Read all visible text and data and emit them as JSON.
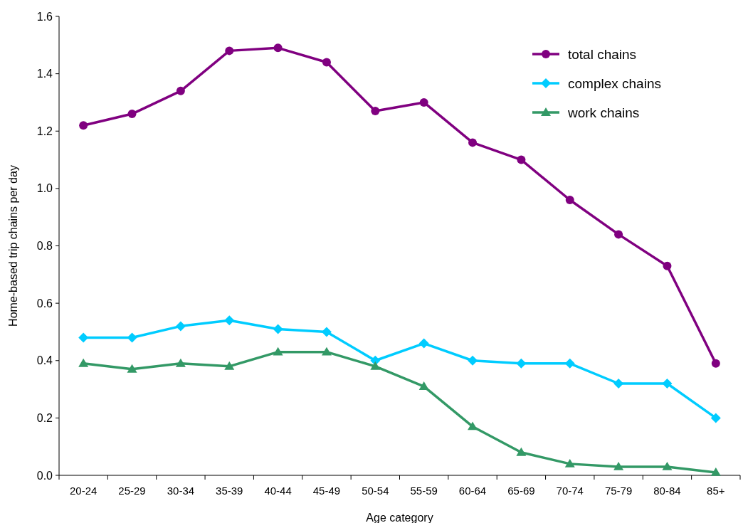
{
  "chart_data": {
    "type": "line",
    "xlabel": "Age category",
    "ylabel": "Home-based trip chains per day",
    "categories": [
      "20-24",
      "25-29",
      "30-34",
      "35-39",
      "40-44",
      "45-49",
      "50-54",
      "55-59",
      "60-64",
      "65-69",
      "70-74",
      "75-79",
      "80-84",
      "85+"
    ],
    "series": [
      {
        "name": "total chains",
        "color": "#800080",
        "marker": "circle",
        "values": [
          1.22,
          1.26,
          1.34,
          1.48,
          1.49,
          1.44,
          1.27,
          1.3,
          1.16,
          1.1,
          0.96,
          0.84,
          0.73,
          0.39
        ]
      },
      {
        "name": "complex chains",
        "color": "#00ccff",
        "marker": "diamond",
        "values": [
          0.48,
          0.48,
          0.52,
          0.54,
          0.51,
          0.5,
          0.4,
          0.46,
          0.4,
          0.39,
          0.39,
          0.32,
          0.32,
          0.2
        ]
      },
      {
        "name": "work chains",
        "color": "#339966",
        "marker": "triangle",
        "values": [
          0.39,
          0.37,
          0.39,
          0.38,
          0.43,
          0.43,
          0.38,
          0.31,
          0.17,
          0.08,
          0.04,
          0.03,
          0.03,
          0.01
        ]
      }
    ],
    "ylim": [
      0,
      1.6
    ],
    "yticks": [
      {
        "value": 0,
        "label": "0.0"
      },
      {
        "value": 0.2,
        "label": "0.2"
      },
      {
        "value": 0.4,
        "label": "0.4"
      },
      {
        "value": 0.6,
        "label": "0.6"
      },
      {
        "value": 0.8,
        "label": "0.8"
      },
      {
        "value": 1,
        "label": "1.0"
      },
      {
        "value": 1.2,
        "label": "1.2"
      },
      {
        "value": 1.4,
        "label": "1.4"
      },
      {
        "value": 1.6,
        "label": "1.6"
      }
    ],
    "grid": false,
    "legend": "top right",
    "line_style": "solid"
  }
}
